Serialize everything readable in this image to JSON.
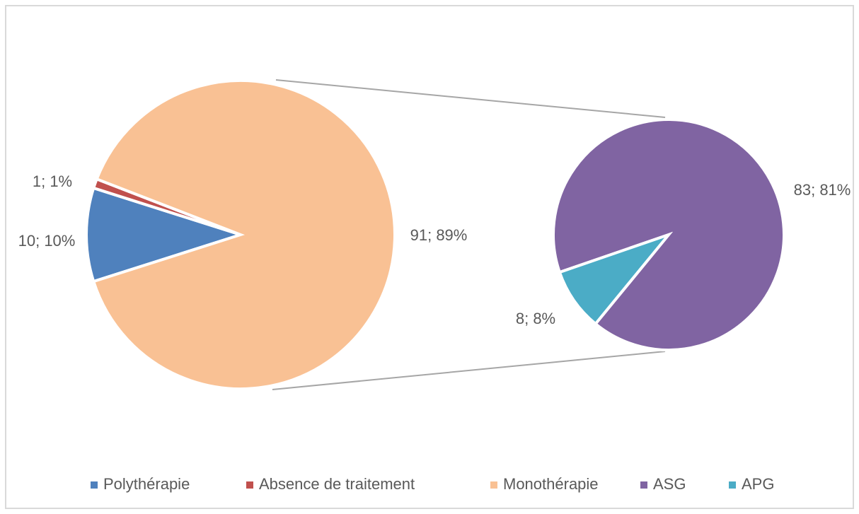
{
  "chart_data": {
    "type": "pie-of-pie",
    "pie": {
      "categories": [
        "Polythérapie",
        "Absence de traitement",
        "Monothérapie"
      ],
      "values": [
        10,
        1,
        91
      ],
      "value_labels": [
        "10; 10%",
        "1; 1%",
        "91; 89%"
      ],
      "colors": [
        "#4f81bd",
        "#c0504d",
        "#f9c194"
      ]
    },
    "second": {
      "categories": [
        "ASG",
        "APG"
      ],
      "values": [
        83,
        8
      ],
      "value_labels": [
        "83; 81%",
        "8; 8%"
      ],
      "colors": [
        "#8064a2",
        "#4bacc6"
      ]
    },
    "legend": "bottom"
  }
}
